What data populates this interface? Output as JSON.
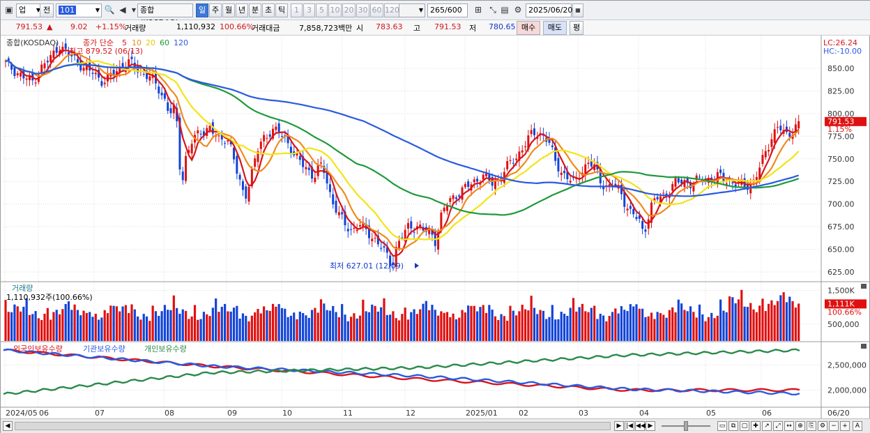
{
  "toolbar": {
    "market_select": "업",
    "prev_label": "전",
    "code_value": "101",
    "index_name": "종합(KOSDAQ)",
    "periods": [
      "일",
      "주",
      "월",
      "년",
      "분",
      "초",
      "틱"
    ],
    "selected_period": "일",
    "intervals": [
      "1",
      "3",
      "5",
      "10",
      "20",
      "30",
      "60",
      "120"
    ],
    "count_value": "265",
    "count_total": "/600",
    "date_value": "2025/06/20"
  },
  "info": {
    "price": "791.53",
    "arrow": "▲",
    "change": "9.02",
    "change_pct": "+1.15%",
    "volume_label": "거래량",
    "volume": "1,110,932",
    "volume_pct": "100.66%",
    "amount_label": "거래대금",
    "amount": "7,858,723백만",
    "open_label": "시",
    "open": "783.63",
    "high_label": "고",
    "high": "791.53",
    "low_label": "저",
    "low": "780.65",
    "buy_label": "매수",
    "sell_label": "매도",
    "eval_label": "평"
  },
  "price_panel": {
    "title": "종합(KOSDAQ)",
    "legend_prefix": "종가 단순",
    "ma_labels": [
      "5",
      "10",
      "20",
      "60",
      "120"
    ],
    "ma_colors": [
      "#d8141c",
      "#f08a1c",
      "#f2e418",
      "#1e9a3a",
      "#2a5ae0"
    ],
    "high_marker": "최고 879.52 (06/13)",
    "low_marker": "최저 627.01 (12/09)",
    "lc": "LC:26.24",
    "hc": "HC:-10.00",
    "current_label": "791.53",
    "current_pct": "1.15%",
    "y_ticks": [
      "850.00",
      "825.00",
      "800.00",
      "775.00",
      "750.00",
      "725.00",
      "700.00",
      "675.00",
      "650.00",
      "625.00"
    ]
  },
  "volume_panel": {
    "title": "거래량",
    "subtitle": "1,110,932주(100.66%)",
    "y_ticks": [
      "1,500K",
      "500,000"
    ],
    "current_label": "1,111K",
    "current_pct": "100.66%"
  },
  "holding_panel": {
    "labels": [
      "외국인보유수량",
      "기관보유수량",
      "개인보유수량"
    ],
    "colors": [
      "#d8141c",
      "#2a5ae0",
      "#2a8a4a"
    ],
    "y_ticks": [
      "2,500,000",
      "2,000,000"
    ]
  },
  "x_axis": {
    "labels": [
      "2024/05",
      "06",
      "07",
      "08",
      "09",
      "10",
      "11",
      "12",
      "2025/01",
      "02",
      "03",
      "04",
      "05",
      "06"
    ],
    "right_label": "06/20"
  },
  "chart_data": {
    "type": "candlestick",
    "title": "종합(KOSDAQ)",
    "x_range": [
      "2024/05",
      "2025/06/20"
    ],
    "ylim": [
      615,
      880
    ],
    "close_path": [
      [
        0,
        855
      ],
      [
        10,
        848
      ],
      [
        20,
        840
      ],
      [
        30,
        835
      ],
      [
        40,
        850
      ],
      [
        50,
        860
      ],
      [
        60,
        876
      ],
      [
        70,
        865
      ],
      [
        80,
        860
      ],
      [
        90,
        848
      ],
      [
        100,
        845
      ],
      [
        110,
        835
      ],
      [
        120,
        842
      ],
      [
        130,
        852
      ],
      [
        140,
        856
      ],
      [
        150,
        848
      ],
      [
        160,
        842
      ],
      [
        170,
        832
      ],
      [
        180,
        815
      ],
      [
        185,
        800
      ],
      [
        190,
        803
      ],
      [
        195,
        780
      ],
      [
        198,
        712
      ],
      [
        202,
        748
      ],
      [
        210,
        768
      ],
      [
        220,
        780
      ],
      [
        230,
        785
      ],
      [
        240,
        770
      ],
      [
        250,
        775
      ],
      [
        255,
        760
      ],
      [
        262,
        730
      ],
      [
        270,
        708
      ],
      [
        278,
        735
      ],
      [
        285,
        760
      ],
      [
        290,
        772
      ],
      [
        300,
        782
      ],
      [
        310,
        778
      ],
      [
        318,
        770
      ],
      [
        325,
        755
      ],
      [
        330,
        748
      ],
      [
        340,
        740
      ],
      [
        348,
        730
      ],
      [
        355,
        742
      ],
      [
        360,
        736
      ],
      [
        368,
        705
      ],
      [
        375,
        690
      ],
      [
        382,
        678
      ],
      [
        390,
        672
      ],
      [
        400,
        676
      ],
      [
        410,
        668
      ],
      [
        418,
        660
      ],
      [
        425,
        650
      ],
      [
        432,
        640
      ],
      [
        436,
        632
      ],
      [
        440,
        650
      ],
      [
        448,
        665
      ],
      [
        455,
        675
      ],
      [
        465,
        676
      ],
      [
        472,
        670
      ],
      [
        480,
        668
      ],
      [
        485,
        660
      ],
      [
        492,
        688
      ],
      [
        500,
        703
      ],
      [
        510,
        712
      ],
      [
        520,
        718
      ],
      [
        530,
        726
      ],
      [
        540,
        732
      ],
      [
        548,
        722
      ],
      [
        556,
        728
      ],
      [
        565,
        740
      ],
      [
        575,
        750
      ],
      [
        585,
        765
      ],
      [
        595,
        778
      ],
      [
        605,
        778
      ],
      [
        612,
        770
      ],
      [
        620,
        748
      ],
      [
        628,
        735
      ],
      [
        635,
        728
      ],
      [
        642,
        722
      ],
      [
        650,
        738
      ],
      [
        658,
        745
      ],
      [
        665,
        740
      ],
      [
        672,
        725
      ],
      [
        680,
        718
      ],
      [
        688,
        720
      ],
      [
        695,
        712
      ],
      [
        700,
        700
      ],
      [
        705,
        690
      ],
      [
        710,
        686
      ],
      [
        715,
        682
      ],
      [
        720,
        668
      ],
      [
        728,
        696
      ],
      [
        735,
        706
      ],
      [
        745,
        712
      ],
      [
        755,
        722
      ],
      [
        765,
        726
      ],
      [
        775,
        722
      ],
      [
        785,
        728
      ],
      [
        795,
        728
      ],
      [
        805,
        730
      ],
      [
        815,
        726
      ],
      [
        825,
        722
      ],
      [
        835,
        720
      ],
      [
        845,
        726
      ],
      [
        852,
        742
      ],
      [
        858,
        758
      ],
      [
        865,
        776
      ],
      [
        872,
        786
      ],
      [
        880,
        775
      ],
      [
        888,
        782
      ],
      [
        895,
        790
      ]
    ],
    "last": {
      "open": 783.63,
      "high": 791.53,
      "low": 780.65,
      "close": 791.53,
      "change": 9.02,
      "change_pct": 1.15
    },
    "period_high": {
      "value": 879.52,
      "date": "06/13"
    },
    "period_low": {
      "value": 627.01,
      "date": "12/09"
    },
    "moving_averages": [
      5,
      10,
      20,
      60,
      120
    ],
    "volume_ylim": [
      0,
      1700000
    ],
    "volume_current": 1110932,
    "holdings_ylim": [
      1700000,
      2900000
    ],
    "holdings": {
      "foreign": [
        [
          0,
          2800000
        ],
        [
          300,
          2480000
        ],
        [
          600,
          2220000
        ],
        [
          900,
          2000000
        ],
        [
          1148,
          2000000
        ]
      ],
      "institution": [
        [
          0,
          2800000
        ],
        [
          300,
          2480000
        ],
        [
          600,
          2280000
        ],
        [
          900,
          2020000
        ],
        [
          1148,
          1930000
        ]
      ],
      "individual": [
        [
          0,
          1920000
        ],
        [
          300,
          2350000
        ],
        [
          600,
          2450000
        ],
        [
          900,
          2700000
        ],
        [
          1148,
          2800000
        ]
      ]
    }
  }
}
